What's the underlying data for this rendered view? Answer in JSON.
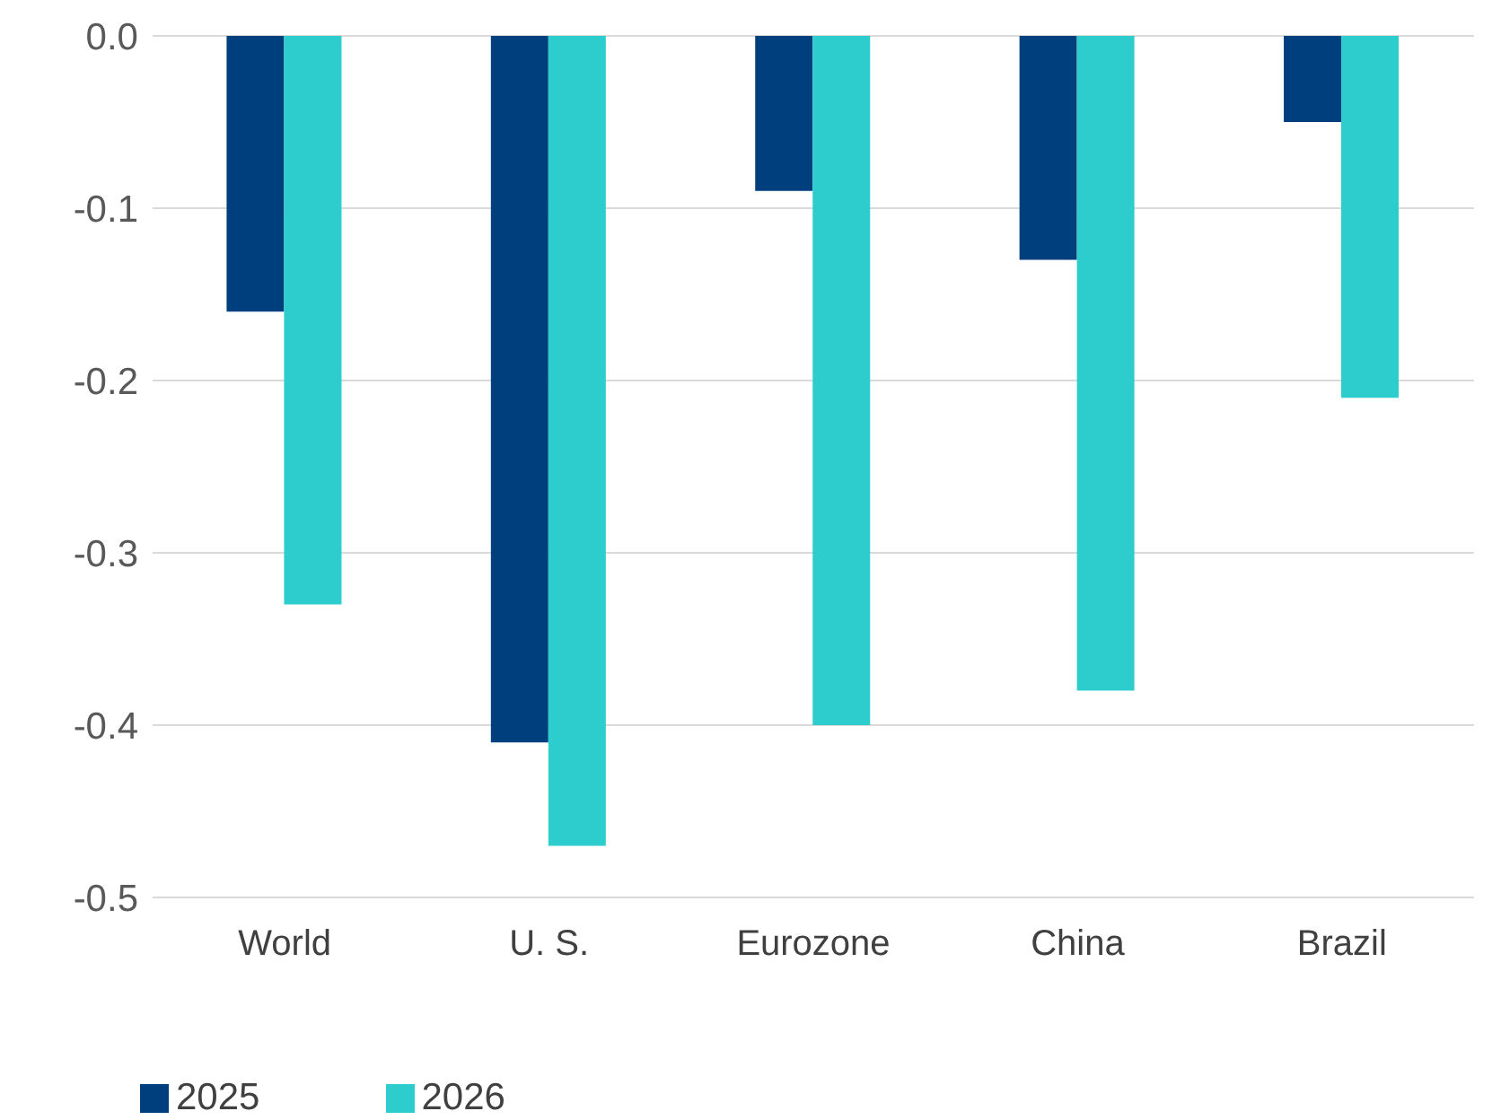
{
  "chart_data": {
    "type": "bar",
    "categories": [
      "World",
      "U. S.",
      "Eurozone",
      "China",
      "Brazil"
    ],
    "series": [
      {
        "name": "2025",
        "color": "#003f7d",
        "values": [
          -0.16,
          -0.41,
          -0.09,
          -0.13,
          -0.05
        ]
      },
      {
        "name": "2026",
        "color": "#2ecdcd",
        "values": [
          -0.33,
          -0.47,
          -0.4,
          -0.38,
          -0.21
        ]
      }
    ],
    "ylim": [
      -0.5,
      0
    ],
    "yticks": [
      {
        "value": 0,
        "label": "0.0"
      },
      -0.1,
      -0.2,
      -0.3,
      -0.4,
      -0.5
    ],
    "grid": "y",
    "legend": "bottom left"
  }
}
